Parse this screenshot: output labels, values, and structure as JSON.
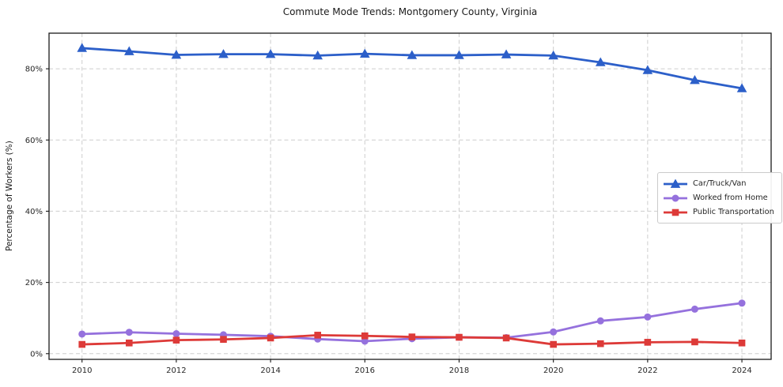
{
  "chart_data": {
    "type": "line",
    "title": "Commute Mode Trends: Montgomery County, Virginia",
    "xlabel": "",
    "ylabel": "Percentage of Workers (%)",
    "x": [
      2010,
      2011,
      2012,
      2013,
      2014,
      2015,
      2016,
      2017,
      2018,
      2019,
      2020,
      2021,
      2022,
      2023,
      2024
    ],
    "series": [
      {
        "name": "Car/Truck/Van",
        "color": "#2c5fc9",
        "marker": "triangle",
        "values": [
          85.8,
          84.9,
          83.9,
          84.1,
          84.1,
          83.7,
          84.2,
          83.8,
          83.8,
          84.0,
          83.7,
          81.8,
          79.6,
          76.8,
          74.5
        ]
      },
      {
        "name": "Worked from Home",
        "color": "#9571dd",
        "marker": "circle",
        "values": [
          5.5,
          6.0,
          5.6,
          5.3,
          4.9,
          4.1,
          3.5,
          4.2,
          4.6,
          4.5,
          6.1,
          9.2,
          10.3,
          12.5,
          14.2
        ]
      },
      {
        "name": "Public Transportation",
        "color": "#dd3a38",
        "marker": "square",
        "values": [
          2.6,
          3.0,
          3.8,
          4.0,
          4.4,
          5.2,
          5.0,
          4.7,
          4.6,
          4.4,
          2.6,
          2.8,
          3.2,
          3.3,
          3.0
        ]
      }
    ],
    "xticks": {
      "values": [
        2010,
        2012,
        2014,
        2016,
        2018,
        2020,
        2022,
        2024
      ],
      "labels": [
        "2010",
        "2012",
        "2014",
        "2016",
        "2018",
        "2020",
        "2022",
        "2024"
      ]
    },
    "yticks": {
      "values": [
        0,
        20,
        40,
        60,
        80
      ],
      "labels": [
        "0%",
        "20%",
        "40%",
        "60%",
        "80%"
      ]
    },
    "xlim": [
      2009.3,
      2024.62
    ],
    "ylim": [
      -1.6,
      90
    ],
    "grid": true,
    "legend_position": "center-right",
    "colors": {
      "grid": "#cdcdcd",
      "spine": "#1a1a1a",
      "background": "#ffffff",
      "text": "#262626"
    }
  }
}
